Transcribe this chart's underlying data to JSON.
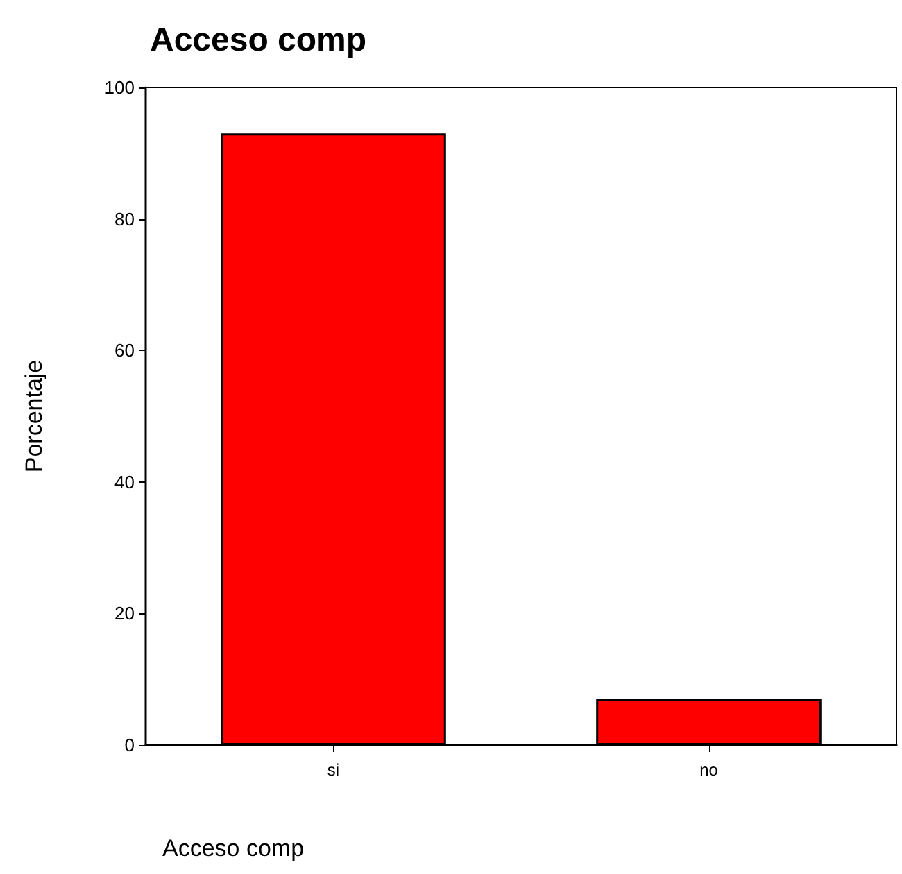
{
  "chart_data": {
    "type": "bar",
    "title": "Acceso comp",
    "xlabel": "Acceso comp",
    "ylabel": "Porcentaje",
    "categories": [
      "si",
      "no"
    ],
    "values": [
      93,
      7
    ],
    "color": "#ff0000",
    "ylim": [
      0,
      100
    ],
    "yticks": [
      0,
      20,
      40,
      60,
      80,
      100
    ],
    "grid": false
  }
}
